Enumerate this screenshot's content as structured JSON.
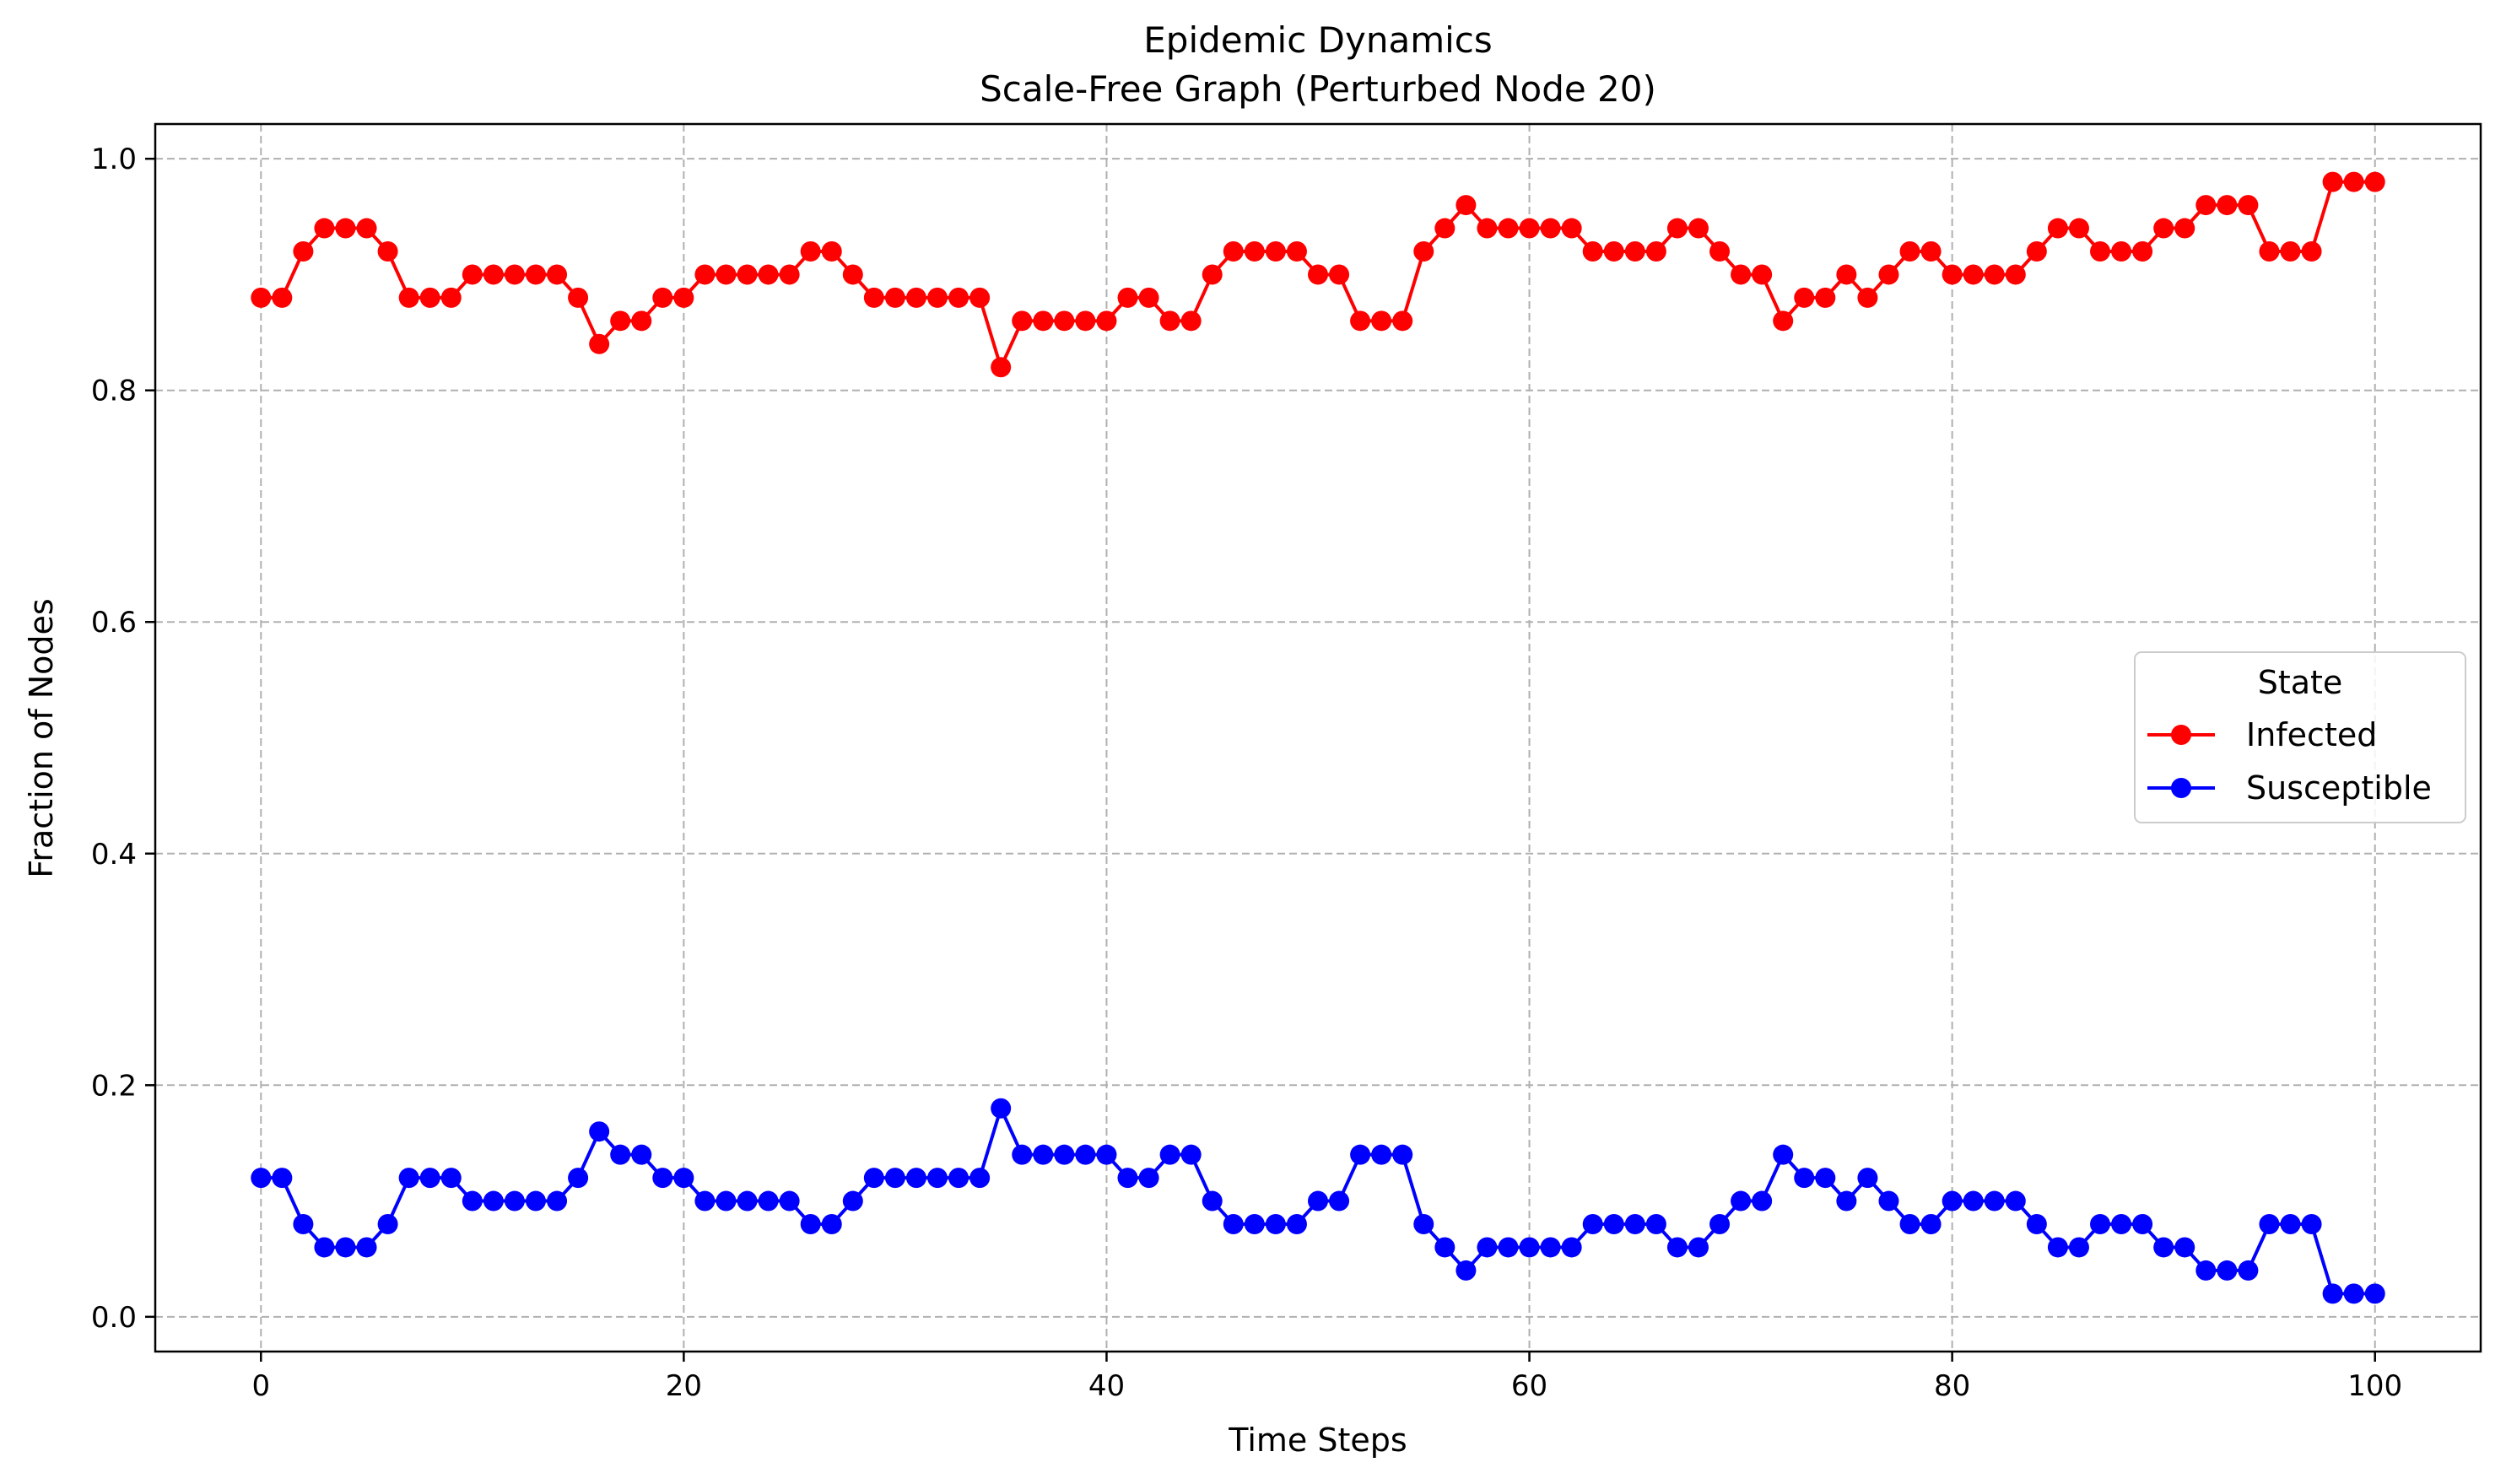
{
  "chart_data": {
    "type": "line",
    "title": "Epidemic Dynamics",
    "subtitle": "Scale-Free Graph (Perturbed Node 20)",
    "xlabel": "Time Steps",
    "ylabel": "Fraction of Nodes",
    "xlim": [
      -5,
      105
    ],
    "ylim": [
      -0.03,
      1.03
    ],
    "xticks": [
      0,
      20,
      40,
      60,
      80,
      100
    ],
    "xtick_labels": [
      "0",
      "20",
      "40",
      "60",
      "80",
      "100"
    ],
    "yticks": [
      0.0,
      0.2,
      0.4,
      0.6,
      0.8,
      1.0
    ],
    "ytick_labels": [
      "0.0",
      "0.2",
      "0.4",
      "0.6",
      "0.8",
      "1.0"
    ],
    "grid": true,
    "legend": {
      "title": "State",
      "placement": "center-right"
    },
    "x_start": 0,
    "x_end": 100,
    "series": [
      {
        "name": "Infected",
        "color": "#ff0000",
        "marker": "circle",
        "values": [
          0.88,
          0.88,
          0.92,
          0.94,
          0.94,
          0.94,
          0.92,
          0.88,
          0.88,
          0.88,
          0.9,
          0.9,
          0.9,
          0.9,
          0.9,
          0.88,
          0.84,
          0.86,
          0.86,
          0.88,
          0.88,
          0.9,
          0.9,
          0.9,
          0.9,
          0.9,
          0.92,
          0.92,
          0.9,
          0.88,
          0.88,
          0.88,
          0.88,
          0.88,
          0.88,
          0.82,
          0.86,
          0.86,
          0.86,
          0.86,
          0.86,
          0.88,
          0.88,
          0.86,
          0.86,
          0.9,
          0.92,
          0.92,
          0.92,
          0.92,
          0.9,
          0.9,
          0.86,
          0.86,
          0.86,
          0.92,
          0.94,
          0.96,
          0.94,
          0.94,
          0.94,
          0.94,
          0.94,
          0.92,
          0.92,
          0.92,
          0.92,
          0.94,
          0.94,
          0.92,
          0.9,
          0.9,
          0.86,
          0.88,
          0.88,
          0.9,
          0.88,
          0.9,
          0.92,
          0.92,
          0.9,
          0.9,
          0.9,
          0.9,
          0.92,
          0.94,
          0.94,
          0.92,
          0.92,
          0.92,
          0.94,
          0.94,
          0.96,
          0.96,
          0.96,
          0.92,
          0.92,
          0.92,
          0.98,
          0.98,
          0.98
        ]
      },
      {
        "name": "Susceptible",
        "color": "#0000ff",
        "marker": "circle",
        "values": [
          0.12,
          0.12,
          0.08,
          0.06,
          0.06,
          0.06,
          0.08,
          0.12,
          0.12,
          0.12,
          0.1,
          0.1,
          0.1,
          0.1,
          0.1,
          0.12,
          0.16,
          0.14,
          0.14,
          0.12,
          0.12,
          0.1,
          0.1,
          0.1,
          0.1,
          0.1,
          0.08,
          0.08,
          0.1,
          0.12,
          0.12,
          0.12,
          0.12,
          0.12,
          0.12,
          0.18,
          0.14,
          0.14,
          0.14,
          0.14,
          0.14,
          0.12,
          0.12,
          0.14,
          0.14,
          0.1,
          0.08,
          0.08,
          0.08,
          0.08,
          0.1,
          0.1,
          0.14,
          0.14,
          0.14,
          0.08,
          0.06,
          0.04,
          0.06,
          0.06,
          0.06,
          0.06,
          0.06,
          0.08,
          0.08,
          0.08,
          0.08,
          0.06,
          0.06,
          0.08,
          0.1,
          0.1,
          0.14,
          0.12,
          0.12,
          0.1,
          0.12,
          0.1,
          0.08,
          0.08,
          0.1,
          0.1,
          0.1,
          0.1,
          0.08,
          0.06,
          0.06,
          0.08,
          0.08,
          0.08,
          0.06,
          0.06,
          0.04,
          0.04,
          0.04,
          0.08,
          0.08,
          0.08,
          0.02,
          0.02,
          0.02
        ]
      }
    ]
  }
}
